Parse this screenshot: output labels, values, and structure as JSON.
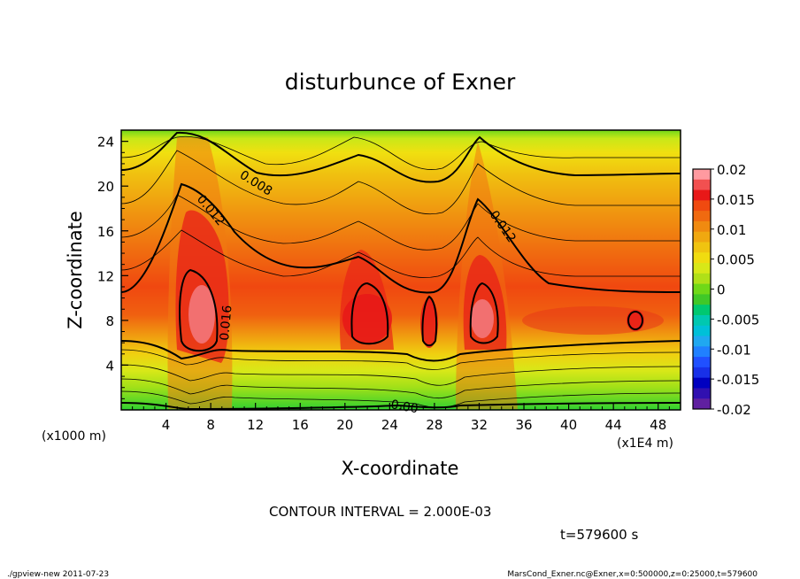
{
  "chart_data": {
    "type": "heatmap",
    "title": "disturbunce of Exner",
    "xlabel": "X-coordinate",
    "ylabel": "Z-coordinate",
    "x_unit_left": "(x1000 m)",
    "x_unit_right": "(x1E4 m)",
    "x_ticks": [
      "4",
      "8",
      "12",
      "16",
      "20",
      "24",
      "28",
      "32",
      "36",
      "40",
      "44",
      "48"
    ],
    "y_ticks": [
      "4",
      "8",
      "12",
      "16",
      "20",
      "24"
    ],
    "xlim": [
      0,
      50
    ],
    "ylim": [
      0,
      25
    ],
    "colorbar_ticks": [
      "0.02",
      "0.015",
      "0.01",
      "0.005",
      "0",
      "-0.005",
      "-0.01",
      "-0.015",
      "-0.02"
    ],
    "colorbar_range": [
      -0.02,
      0.02
    ],
    "contour_labels": [
      "0.008",
      "0.012",
      "0.016",
      "0.012",
      "0.00"
    ],
    "contour_interval_text": "CONTOUR INTERVAL = 2.000E-03",
    "time_text": "t=579600  s",
    "grid": false,
    "legend": "right colorbar",
    "colors": {
      "max": "#f07878",
      "high": "#e81818",
      "mid_high": "#f06010",
      "mid": "#f09a10",
      "low": "#f0c010",
      "near_zero": "#e0e020",
      "zero": "#60d020",
      "neg_low": "#00c8a0",
      "neg_mid": "#2080ff",
      "neg_high": "#0000c0",
      "min": "#6020a0"
    }
  },
  "footer": {
    "left": "./gpview-new   2011-07-23",
    "right": "MarsCond_Exner.nc@Exner,x=0:500000,z=0:25000,t=579600"
  }
}
